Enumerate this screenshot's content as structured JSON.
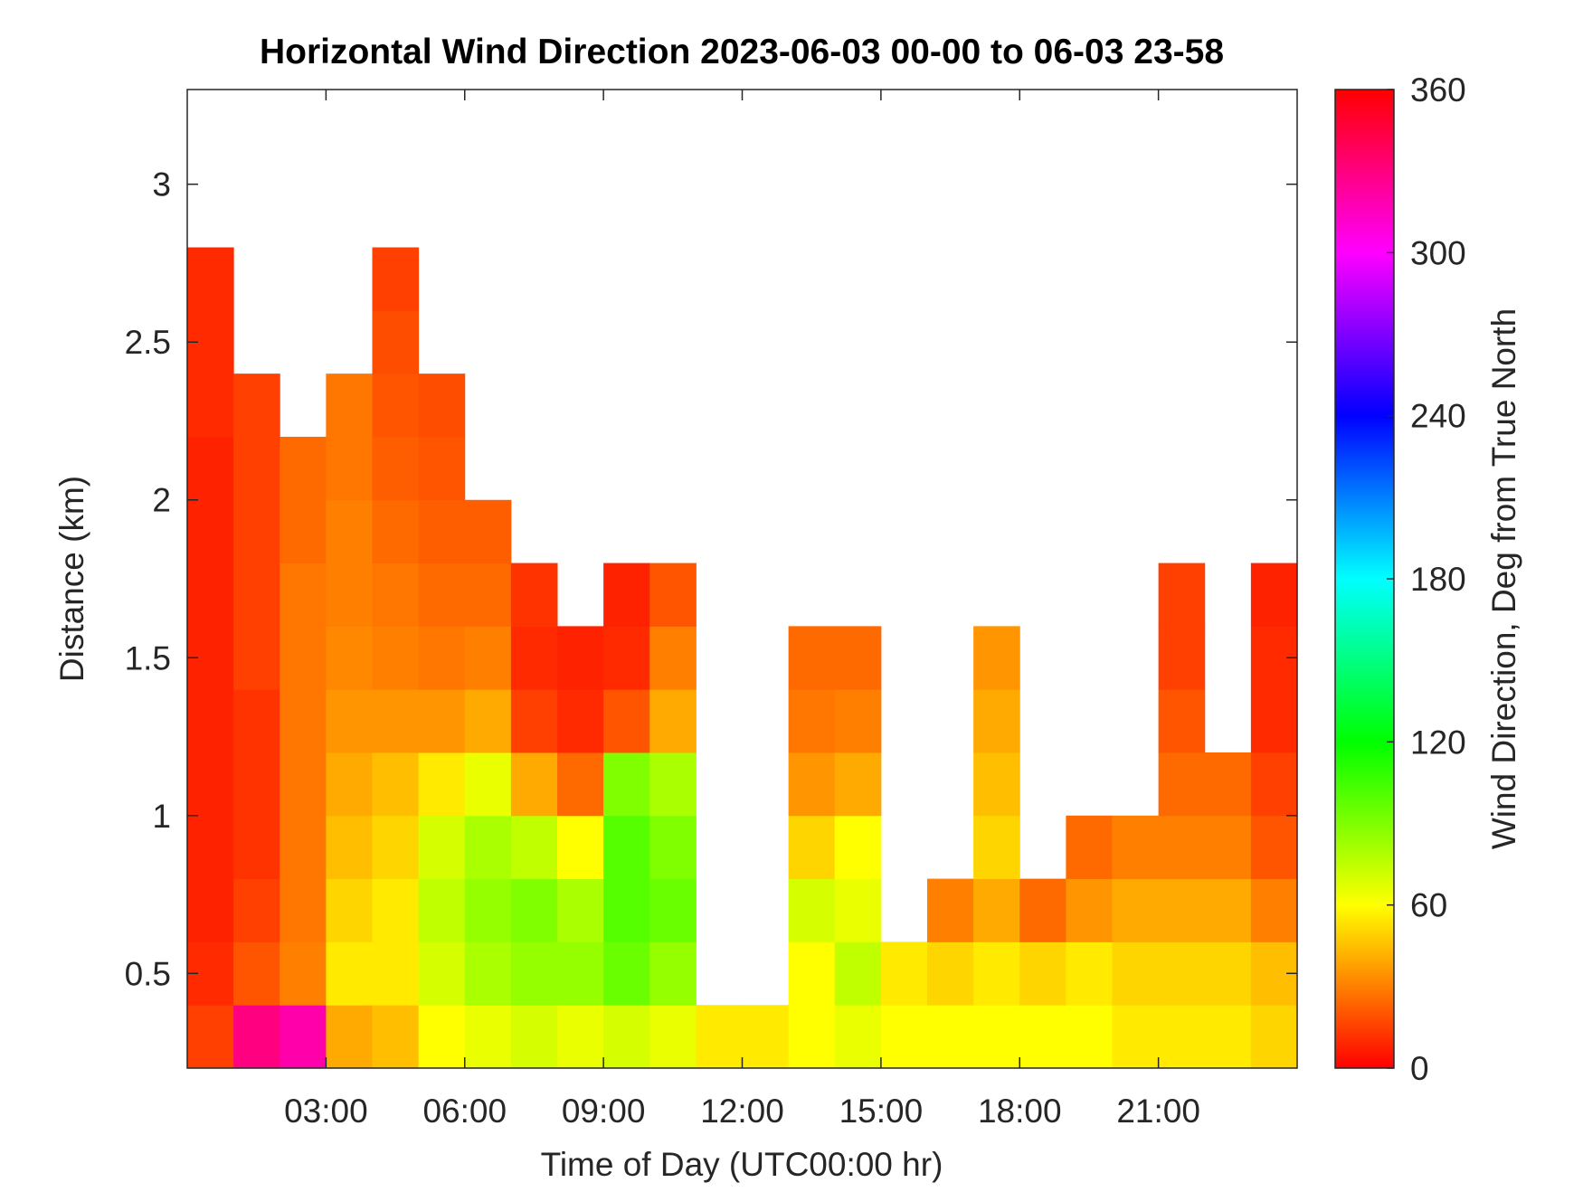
{
  "chart_data": {
    "type": "heatmap",
    "title": "Horizontal Wind Direction 2023-06-03 00-00 to 06-03 23-58",
    "x_label": "Time of Day (UTC00:00 hr)",
    "y_label": "Distance (km)",
    "colorbar_label": "Wind Direction, Deg from True North",
    "colormap": "hsv",
    "xlim": [
      0,
      24
    ],
    "ylim": [
      0.2,
      3.3
    ],
    "clim": [
      0,
      360
    ],
    "xticks": [
      {
        "value": 3,
        "label": "03:00"
      },
      {
        "value": 6,
        "label": "06:00"
      },
      {
        "value": 9,
        "label": "09:00"
      },
      {
        "value": 12,
        "label": "12:00"
      },
      {
        "value": 15,
        "label": "15:00"
      },
      {
        "value": 18,
        "label": "18:00"
      },
      {
        "value": 21,
        "label": "21:00"
      }
    ],
    "yticks": [
      0.5,
      1,
      1.5,
      2,
      2.5,
      3
    ],
    "cticks": [
      0,
      60,
      120,
      180,
      240,
      300,
      360
    ],
    "x_bins": [
      0,
      1,
      2,
      3,
      4,
      5,
      6,
      7,
      8,
      9,
      10,
      11,
      12,
      13,
      14,
      15,
      16,
      17,
      18,
      19,
      20,
      21,
      22,
      23,
      24
    ],
    "y_bins": [
      0.2,
      0.4,
      0.6,
      0.8,
      1.0,
      1.2,
      1.4,
      1.6,
      1.8,
      2.0,
      2.2,
      2.4,
      2.6,
      2.8
    ],
    "values": [
      [
        15,
        330,
        320,
        40,
        45,
        60,
        65,
        70,
        65,
        70,
        65,
        55,
        55,
        60,
        65,
        60,
        60,
        60,
        60,
        60,
        55,
        55,
        55,
        50
      ],
      [
        10,
        20,
        30,
        55,
        55,
        70,
        80,
        85,
        85,
        95,
        85,
        null,
        null,
        60,
        75,
        55,
        50,
        55,
        50,
        55,
        50,
        50,
        50,
        45
      ],
      [
        8,
        15,
        28,
        50,
        55,
        75,
        85,
        90,
        80,
        100,
        95,
        null,
        null,
        70,
        65,
        null,
        30,
        40,
        25,
        35,
        40,
        40,
        40,
        30
      ],
      [
        8,
        12,
        28,
        45,
        50,
        70,
        80,
        75,
        60,
        100,
        90,
        null,
        null,
        50,
        60,
        null,
        null,
        50,
        null,
        25,
        30,
        30,
        30,
        20
      ],
      [
        8,
        12,
        28,
        40,
        45,
        55,
        65,
        40,
        25,
        90,
        80,
        null,
        null,
        35,
        40,
        null,
        null,
        45,
        null,
        null,
        null,
        25,
        25,
        15
      ],
      [
        8,
        12,
        28,
        35,
        35,
        35,
        40,
        15,
        10,
        20,
        40,
        null,
        null,
        28,
        30,
        null,
        null,
        40,
        null,
        null,
        null,
        20,
        null,
        10
      ],
      [
        8,
        15,
        28,
        32,
        30,
        28,
        30,
        10,
        8,
        10,
        30,
        null,
        null,
        25,
        25,
        null,
        null,
        35,
        null,
        null,
        null,
        15,
        null,
        10
      ],
      [
        8,
        15,
        28,
        30,
        28,
        25,
        25,
        12,
        null,
        8,
        20,
        null,
        null,
        null,
        null,
        null,
        null,
        null,
        null,
        null,
        null,
        15,
        null,
        8
      ],
      [
        8,
        15,
        25,
        30,
        25,
        22,
        22,
        null,
        null,
        null,
        null,
        null,
        null,
        null,
        null,
        null,
        null,
        null,
        null,
        null,
        null,
        null,
        null,
        null
      ],
      [
        8,
        15,
        25,
        28,
        22,
        20,
        null,
        null,
        null,
        null,
        null,
        null,
        null,
        null,
        null,
        null,
        null,
        null,
        null,
        null,
        null,
        null,
        null,
        null
      ],
      [
        10,
        15,
        null,
        28,
        20,
        18,
        null,
        null,
        null,
        null,
        null,
        null,
        null,
        null,
        null,
        null,
        null,
        null,
        null,
        null,
        null,
        null,
        null,
        null
      ],
      [
        10,
        null,
        null,
        null,
        18,
        null,
        null,
        null,
        null,
        null,
        null,
        null,
        null,
        null,
        null,
        null,
        null,
        null,
        null,
        null,
        null,
        null,
        null,
        null
      ],
      [
        10,
        null,
        null,
        null,
        15,
        null,
        null,
        null,
        null,
        null,
        null,
        null,
        null,
        null,
        null,
        null,
        null,
        null,
        null,
        null,
        null,
        null,
        null,
        null
      ]
    ]
  }
}
